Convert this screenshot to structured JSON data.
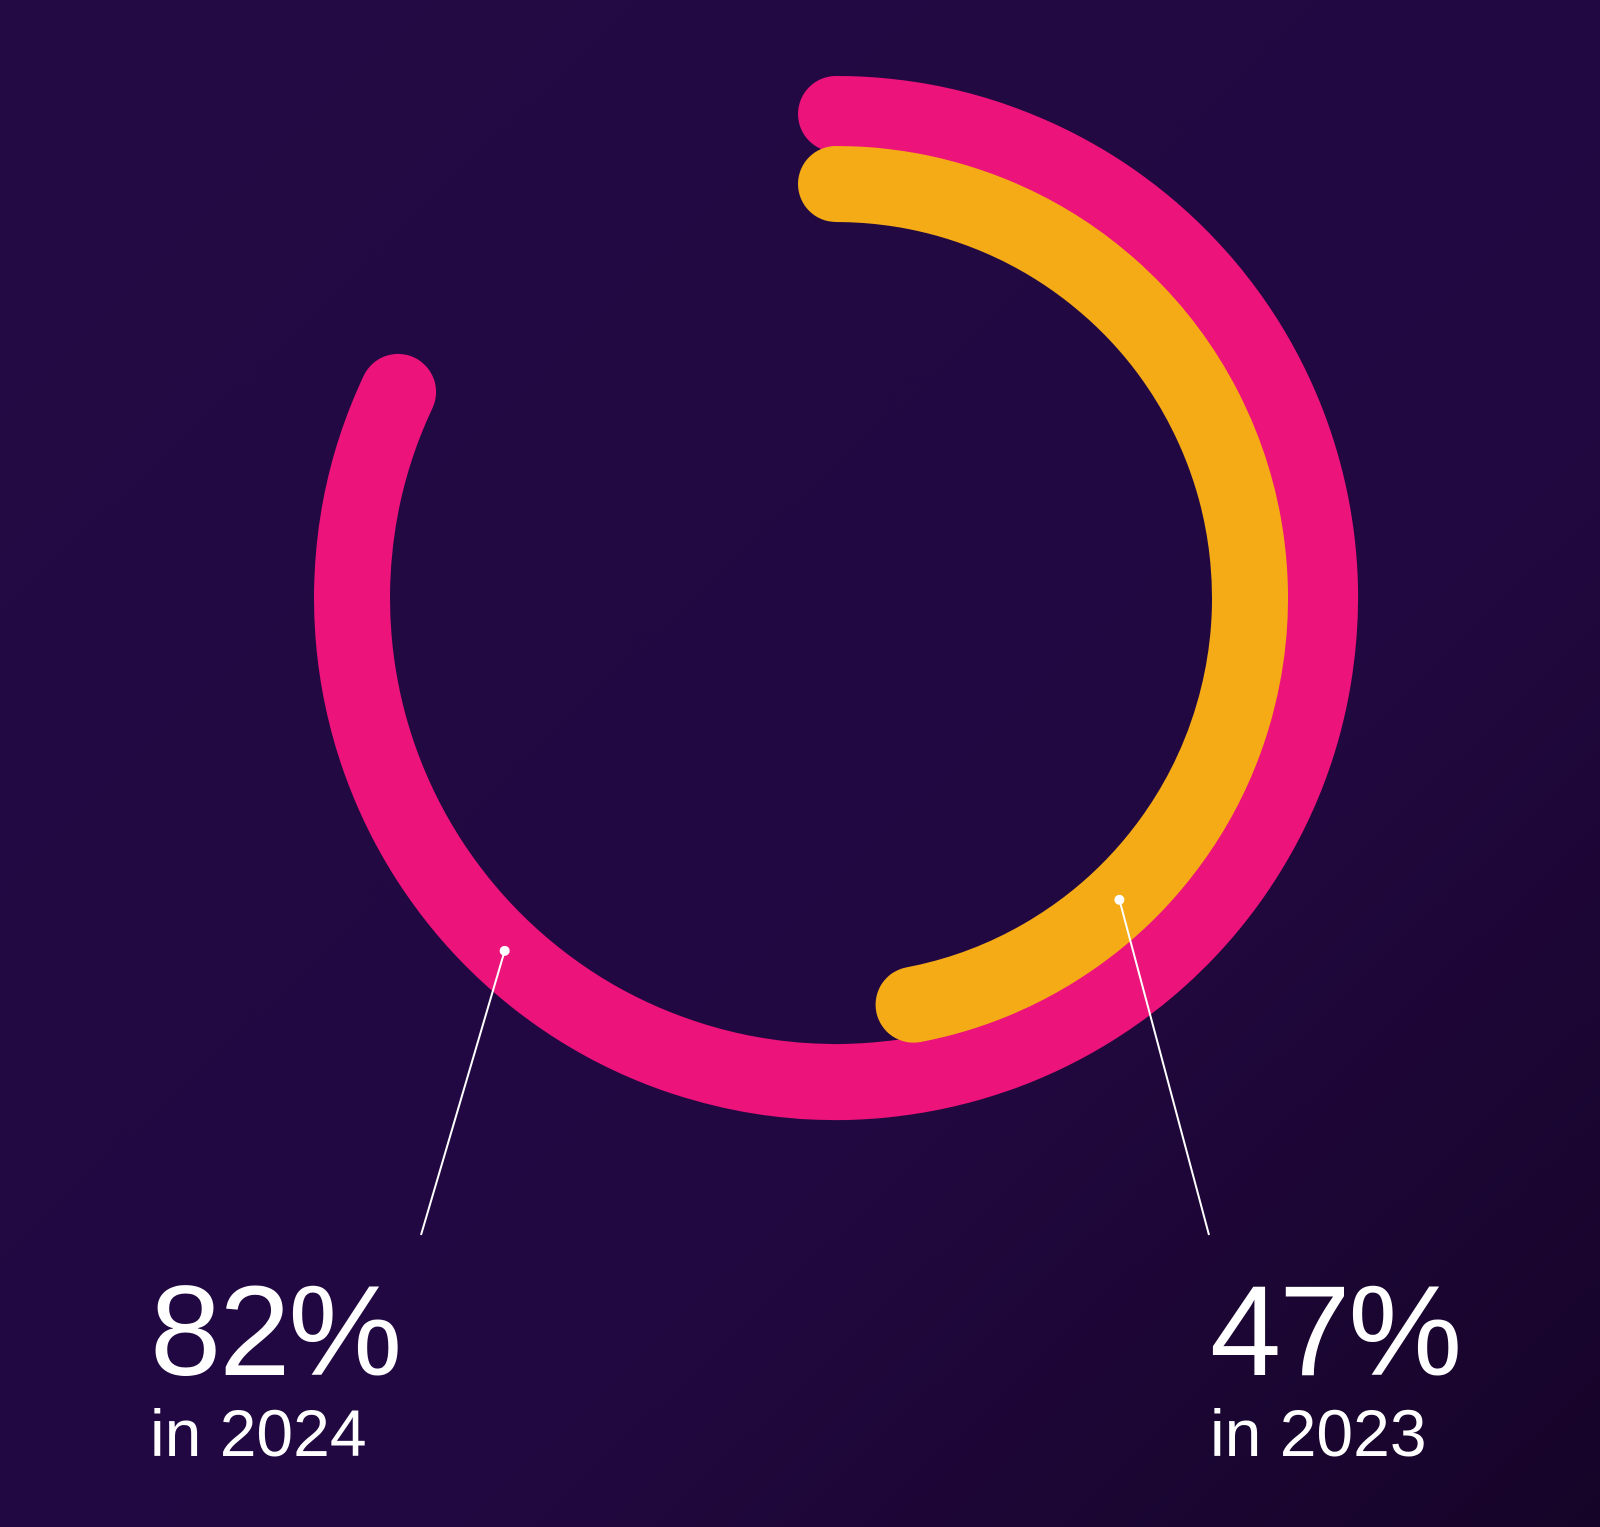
{
  "colors": {
    "background_start": "#230a44",
    "background_end": "#170529",
    "ring_2024": "#ec137b",
    "ring_2023": "#f5ab16",
    "text": "#ffffff",
    "leader": "#ffffff"
  },
  "chart_data": {
    "type": "radial-bar",
    "unit": "%",
    "max": 100,
    "series": [
      {
        "id": "2024",
        "value": 82,
        "color": "#ec137b"
      },
      {
        "id": "2023",
        "value": 47,
        "color": "#f5ab16"
      }
    ]
  },
  "labels": {
    "y2024": {
      "value": "82%",
      "caption": "in 2024"
    },
    "y2023": {
      "value": "47%",
      "caption": "in 2023"
    }
  }
}
